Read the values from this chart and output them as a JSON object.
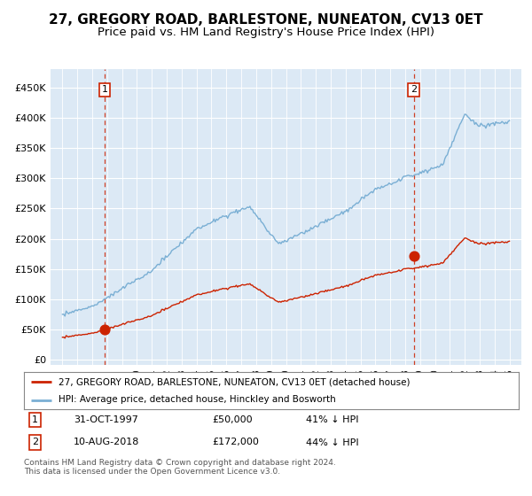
{
  "title": "27, GREGORY ROAD, BARLESTONE, NUNEATON, CV13 0ET",
  "subtitle": "Price paid vs. HM Land Registry's House Price Index (HPI)",
  "hpi_label": "HPI: Average price, detached house, Hinckley and Bosworth",
  "property_label": "27, GREGORY ROAD, BARLESTONE, NUNEATON, CV13 0ET (detached house)",
  "transaction1_date": "31-OCT-1997",
  "transaction1_price": 50000,
  "transaction1_note": "41% ↓ HPI",
  "transaction2_date": "10-AUG-2018",
  "transaction2_price": 172000,
  "transaction2_note": "44% ↓ HPI",
  "footer": "Contains HM Land Registry data © Crown copyright and database right 2024.\nThis data is licensed under the Open Government Licence v3.0.",
  "yticks": [
    0,
    50000,
    100000,
    150000,
    200000,
    250000,
    300000,
    350000,
    400000,
    450000
  ],
  "hpi_color": "#7aafd4",
  "property_color": "#cc2200",
  "background_color": "#ffffff",
  "plot_bg_color": "#dce9f5",
  "grid_color": "#ffffff",
  "title_fontsize": 11,
  "subtitle_fontsize": 9.5,
  "t1_year": 1997.83,
  "t2_year": 2018.58,
  "t1_price": 50000,
  "t2_price": 172000
}
